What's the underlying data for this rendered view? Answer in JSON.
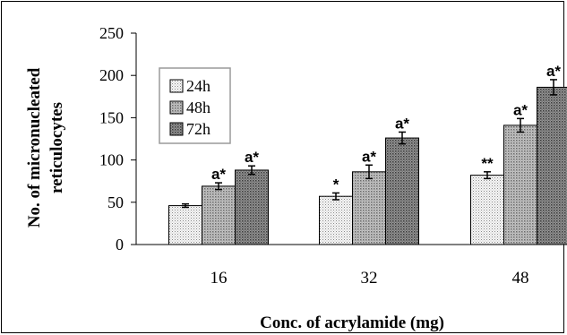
{
  "chart_data": {
    "type": "bar",
    "title": "",
    "xlabel": "Conc. of acrylamide (mg)",
    "ylabel_line1": "No. of micronucleated",
    "ylabel_line2": "reticulocytes",
    "categories": [
      "16",
      "32",
      "48"
    ],
    "ylim": [
      0,
      250
    ],
    "yticks": [
      "0",
      "50",
      "100",
      "150",
      "200",
      "250"
    ],
    "ytick_values": [
      0,
      50,
      100,
      150,
      200,
      250
    ],
    "legend_position": "top-left",
    "grid": false,
    "series": [
      {
        "name": "24h",
        "values": [
          46,
          57,
          82
        ],
        "errors": [
          2,
          4,
          4
        ],
        "annotations": [
          "",
          "*",
          "**"
        ],
        "color": "#eeeeee",
        "pattern": "dots-light"
      },
      {
        "name": "48h",
        "values": [
          69,
          86,
          141
        ],
        "errors": [
          4,
          8,
          8
        ],
        "annotations": [
          "a*",
          "a*",
          "a*"
        ],
        "color": "#a9a9a9",
        "pattern": "dots-medium"
      },
      {
        "name": "72h",
        "values": [
          88,
          126,
          186
        ],
        "errors": [
          5,
          7,
          9
        ],
        "annotations": [
          "a*",
          "a*",
          "a*"
        ],
        "color": "#6e6e6e",
        "pattern": "dots-dark"
      }
    ]
  }
}
